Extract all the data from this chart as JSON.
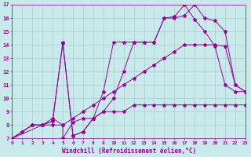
{
  "xlabel": "Windchill (Refroidissement éolien,°C)",
  "bg_color": "#c8eaea",
  "grid_color": "#a8cccc",
  "line_color": "#990099",
  "xlim": [
    0,
    23
  ],
  "ylim": [
    7,
    17
  ],
  "xticks": [
    0,
    1,
    2,
    3,
    4,
    5,
    6,
    7,
    8,
    9,
    10,
    11,
    12,
    13,
    14,
    15,
    16,
    17,
    18,
    19,
    20,
    21,
    22,
    23
  ],
  "yticks": [
    7,
    8,
    9,
    10,
    11,
    12,
    13,
    14,
    15,
    16,
    17
  ],
  "lines": [
    {
      "x": [
        0,
        1,
        2,
        3,
        4,
        5,
        5,
        6,
        7,
        8,
        9,
        10,
        11,
        12,
        13,
        14,
        15,
        16,
        17,
        18,
        19,
        20,
        21,
        22,
        23
      ],
      "y": [
        7,
        7.5,
        8,
        8,
        8.5,
        8,
        7,
        8.2,
        8.5,
        8.5,
        9,
        9,
        9,
        9.5,
        9.5,
        9.5,
        9.5,
        9.5,
        9.5,
        9.5,
        9.5,
        9.5,
        9.5,
        9.5,
        9.5
      ]
    },
    {
      "x": [
        0,
        1,
        2,
        3,
        4,
        5,
        6,
        7,
        8,
        9,
        10,
        11,
        12,
        13,
        14,
        15,
        16,
        17,
        18,
        19,
        20,
        21,
        22,
        23
      ],
      "y": [
        7,
        7.5,
        8,
        8,
        8,
        8,
        8.5,
        9,
        9.5,
        10,
        10.5,
        11,
        11.5,
        12,
        12.5,
        13,
        13.5,
        14,
        14,
        14,
        14,
        13.9,
        11,
        10.5
      ]
    },
    {
      "x": [
        0,
        2,
        3,
        4,
        5,
        6,
        7,
        8,
        9,
        10,
        11,
        12,
        13,
        14,
        15,
        16,
        17,
        18,
        19,
        20,
        21,
        22,
        23
      ],
      "y": [
        7,
        8,
        8,
        8.3,
        14.2,
        7.2,
        7.5,
        8.5,
        10.5,
        14.2,
        14.2,
        14.2,
        14.2,
        14.2,
        16,
        16,
        16.2,
        17,
        16,
        15.8,
        15,
        11,
        10.5
      ]
    },
    {
      "x": [
        0,
        3,
        4,
        5,
        6,
        7,
        8,
        9,
        10,
        11,
        12,
        13,
        14,
        15,
        16,
        17,
        18,
        19,
        20,
        21,
        22,
        23
      ],
      "y": [
        7,
        8,
        8.3,
        14.1,
        7.2,
        7.5,
        8.5,
        9,
        10,
        12,
        14.2,
        14.2,
        14.2,
        16,
        16.1,
        17,
        15.9,
        15,
        13.9,
        11,
        10.5,
        10.5
      ]
    }
  ]
}
